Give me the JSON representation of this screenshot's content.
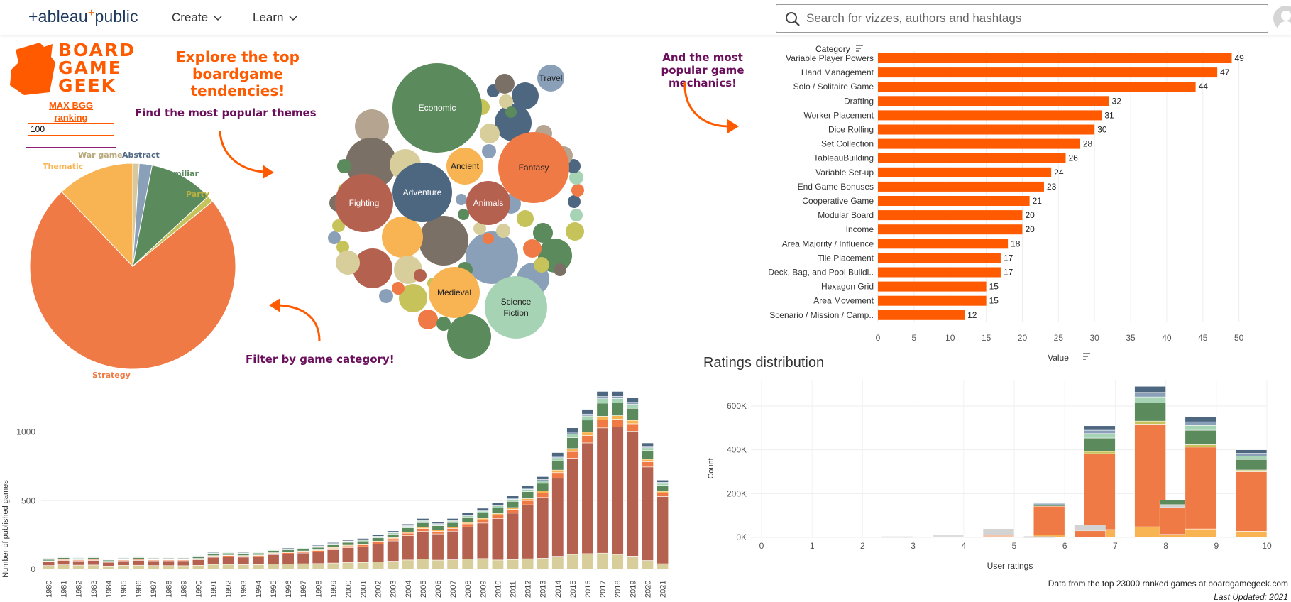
{
  "topbar": {
    "logo_left": "+ableau",
    "logo_plus": "+",
    "logo_right": "public",
    "nav": [
      {
        "label": "Create"
      },
      {
        "label": "Learn"
      }
    ],
    "search_placeholder": "Search for vizzes, authors and hashtags"
  },
  "bgg_logo": {
    "letters": [
      "BOARD",
      "GAME",
      "GEEK"
    ]
  },
  "headings": {
    "explore": "Explore the top boardgame tendencies!",
    "themes": "Find the most popular themes",
    "mechanics": "And the most popular game mechanics!",
    "filter": "Filter by game category!",
    "ratings": "Ratings distribution"
  },
  "filter_box": {
    "label": "MAX BGG ranking",
    "value": "100"
  },
  "colors": {
    "orange": "#ff5a00",
    "purple": "#6b0f5c",
    "strategy": "#f07a45",
    "thematic": "#f8b453",
    "familiar": "#5b8a5c",
    "abstract": "#8aa0b8",
    "war": "#d7c89e",
    "party": "#c6c35a",
    "brick": "#b5614f",
    "slate": "#4d6781"
  },
  "pie_chart": {
    "type": "pie",
    "slices": [
      {
        "label": "Strategy",
        "value": 73
      },
      {
        "label": "Thematic",
        "value": 12
      },
      {
        "label": "War game",
        "value": 1
      },
      {
        "label": "Abstract",
        "value": 2
      },
      {
        "label": "Familiar",
        "value": 10
      },
      {
        "label": "Party",
        "value": 1
      }
    ]
  },
  "bubbles": {
    "labels": [
      "Economic",
      "Travel",
      "Fantasy",
      "Ancient",
      "Animals",
      "Adventure",
      "Fighting",
      "Medieval",
      "Science Fiction"
    ]
  },
  "chart_data": [
    {
      "type": "bar",
      "orientation": "horizontal",
      "category_header": "Category",
      "xlabel": "Value",
      "xlim": [
        0,
        52
      ],
      "xticks": [
        0,
        5,
        10,
        15,
        20,
        25,
        30,
        35,
        40,
        45,
        50
      ],
      "categories": [
        "Variable Player Powers",
        "Hand Management",
        "Solo / Solitaire Game",
        "Drafting",
        "Worker Placement",
        "Dice Rolling",
        "Set Collection",
        "TableauBuilding",
        "Variable Set-up",
        "End Game Bonuses",
        "Cooperative Game",
        "Modular Board",
        "Income",
        "Area Majority / Influence",
        "Tile Placement",
        "Deck, Bag, and Pool Buildi..",
        "Hexagon Grid",
        "Area Movement",
        "Scenario / Mission / Camp.."
      ],
      "values": [
        49,
        47,
        44,
        32,
        31,
        30,
        28,
        26,
        24,
        23,
        21,
        20,
        20,
        18,
        17,
        17,
        15,
        15,
        12
      ]
    },
    {
      "type": "bar",
      "stacked": true,
      "ylabel": "Number of published games",
      "yticks": [
        0,
        500,
        1000
      ],
      "ylim": [
        0,
        1380
      ],
      "categories": [
        "1980",
        "1981",
        "1982",
        "1983",
        "1984",
        "1985",
        "1986",
        "1987",
        "1988",
        "1989",
        "1990",
        "1991",
        "1992",
        "1993",
        "1994",
        "1995",
        "1996",
        "1997",
        "1998",
        "1999",
        "2000",
        "2001",
        "2002",
        "2003",
        "2004",
        "2005",
        "2006",
        "2007",
        "2008",
        "2009",
        "2010",
        "2011",
        "2012",
        "2013",
        "2014",
        "2015",
        "2016",
        "2017",
        "2018",
        "2019",
        "2020",
        "2021"
      ],
      "totals": [
        80,
        95,
        90,
        95,
        75,
        90,
        95,
        90,
        90,
        90,
        100,
        125,
        130,
        125,
        130,
        150,
        155,
        165,
        175,
        195,
        215,
        225,
        250,
        280,
        330,
        370,
        345,
        370,
        410,
        445,
        485,
        535,
        610,
        675,
        850,
        1030,
        1165,
        1295,
        1295,
        1250,
        920,
        650
      ]
    },
    {
      "type": "bar",
      "stacked": true,
      "xlabel": "User ratings",
      "ylabel": "Count",
      "yticks": [
        "0K",
        "200K",
        "400K",
        "600K"
      ],
      "ylim": [
        0,
        720000
      ],
      "categories": [
        "3",
        "4",
        "5",
        "6",
        "7",
        "8",
        "8.5",
        "9",
        "10"
      ],
      "totals": [
        0,
        10000,
        40000,
        160000,
        510000,
        690000,
        170000,
        550000,
        400000
      ],
      "xticks": [
        "0",
        "1",
        "2",
        "3",
        "4",
        "5",
        "6",
        "7",
        "8",
        "9",
        "10"
      ]
    }
  ],
  "footer": {
    "source": "Data from the top 23000 ranked games at boardgamegeek.com",
    "updated": "Last Updated: 2021"
  }
}
